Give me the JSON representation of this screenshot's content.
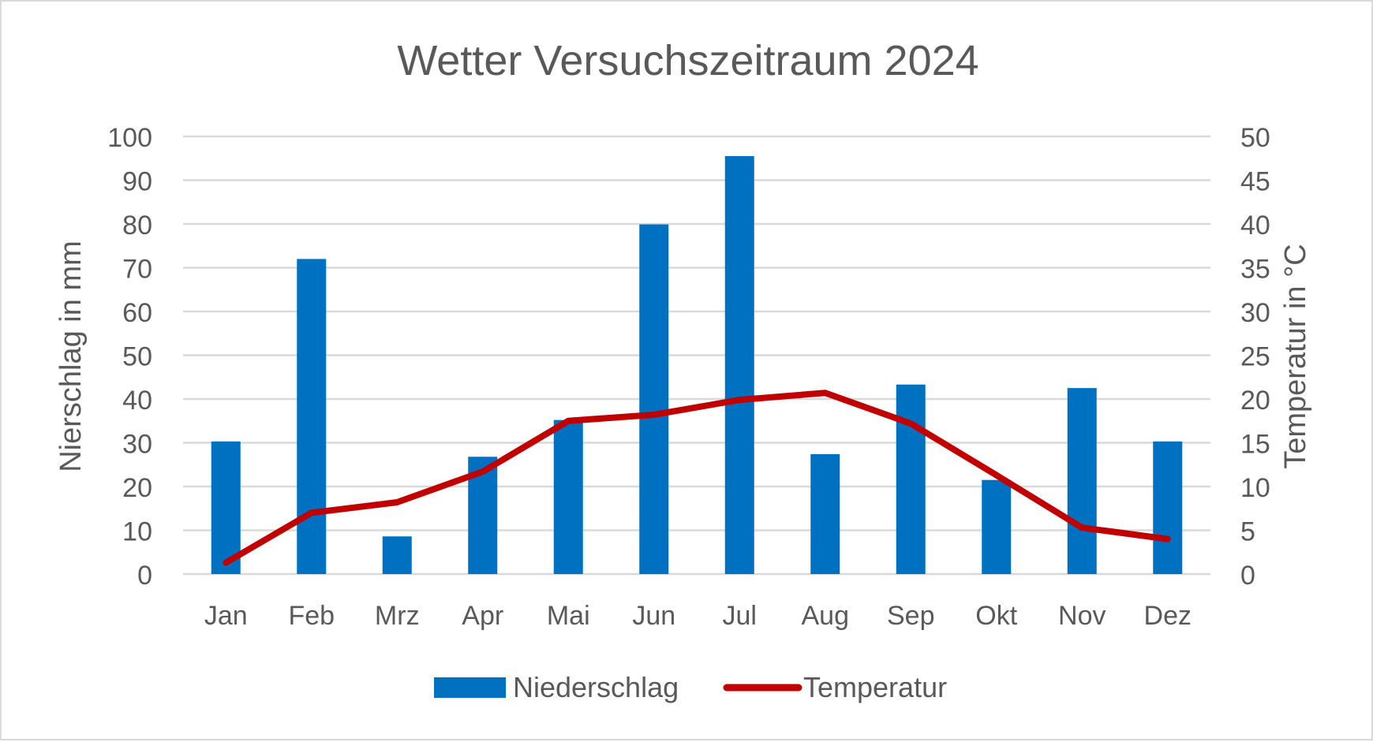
{
  "chart_data": {
    "type": "bar+line",
    "title": "Wetter Versuchszeitraum 2024",
    "categories": [
      "Jan",
      "Feb",
      "Mrz",
      "Apr",
      "Mai",
      "Jun",
      "Jul",
      "Aug",
      "Sep",
      "Okt",
      "Nov",
      "Dez"
    ],
    "ylabel_left": "Nierschlag in mm",
    "ylabel_right": "Temperatur in °C",
    "ylim_left": [
      0,
      100
    ],
    "ylim_right": [
      0,
      50
    ],
    "yticks_left": [
      "0",
      "10",
      "20",
      "30",
      "40",
      "50",
      "60",
      "70",
      "80",
      "90",
      "100"
    ],
    "yticks_right": [
      "0",
      "5",
      "10",
      "15",
      "20",
      "25",
      "30",
      "35",
      "40",
      "45",
      "50"
    ],
    "grid": true,
    "legend_position": "bottom",
    "series": [
      {
        "name": "Niederschlag",
        "type": "bar",
        "axis": "left",
        "color": "#0070c0",
        "values": [
          30.3,
          72,
          8.6,
          26.8,
          35.2,
          79.9,
          95.5,
          27.4,
          43.3,
          21.5,
          42.5,
          30.3
        ]
      },
      {
        "name": "Temperatur",
        "type": "line",
        "axis": "right",
        "color": "#c00000",
        "values": [
          1.3,
          7.0,
          8.2,
          11.7,
          17.5,
          18.2,
          19.9,
          20.7,
          17.2,
          11.3,
          5.3,
          4.0
        ]
      }
    ]
  }
}
